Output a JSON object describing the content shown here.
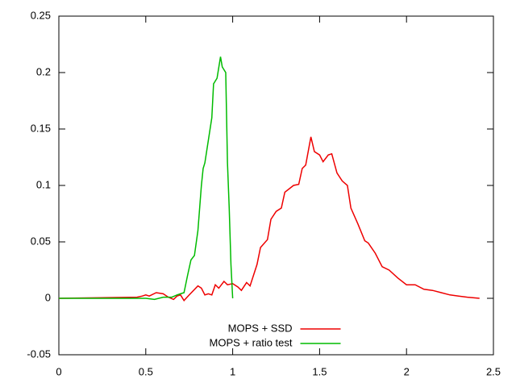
{
  "chart_data": {
    "type": "line",
    "xlim": [
      0,
      2.5
    ],
    "xticks": [
      0,
      0.5,
      1,
      1.5,
      2,
      2.5
    ],
    "ylim": [
      -0.05,
      0.25
    ],
    "yticks": [
      -0.05,
      0,
      0.05,
      0.1,
      0.15,
      0.2,
      0.25
    ],
    "legend": "bottom center",
    "series": [
      {
        "name": "MOPS + SSD",
        "color": "#ee0000",
        "x": [
          0,
          0.45,
          0.48,
          0.5,
          0.52,
          0.56,
          0.6,
          0.63,
          0.66,
          0.68,
          0.7,
          0.72,
          0.75,
          0.8,
          0.82,
          0.84,
          0.86,
          0.88,
          0.9,
          0.92,
          0.95,
          0.97,
          1.0,
          1.03,
          1.05,
          1.08,
          1.1,
          1.14,
          1.16,
          1.2,
          1.22,
          1.25,
          1.28,
          1.3,
          1.35,
          1.38,
          1.4,
          1.42,
          1.45,
          1.47,
          1.5,
          1.52,
          1.55,
          1.57,
          1.6,
          1.63,
          1.66,
          1.68,
          1.72,
          1.76,
          1.78,
          1.82,
          1.86,
          1.9,
          1.95,
          2.0,
          2.05,
          2.1,
          2.15,
          2.2,
          2.25,
          2.3,
          2.35,
          2.42
        ],
        "values": [
          0,
          0.001,
          0.002,
          0.003,
          0.002,
          0.005,
          0.004,
          0.001,
          -0.001,
          0.002,
          0.003,
          -0.002,
          0.003,
          0.011,
          0.009,
          0.003,
          0.004,
          0.003,
          0.012,
          0.009,
          0.015,
          0.012,
          0.013,
          0.01,
          0.007,
          0.014,
          0.011,
          0.03,
          0.045,
          0.052,
          0.07,
          0.077,
          0.08,
          0.094,
          0.1,
          0.101,
          0.115,
          0.118,
          0.143,
          0.13,
          0.127,
          0.121,
          0.127,
          0.128,
          0.111,
          0.104,
          0.1,
          0.08,
          0.066,
          0.051,
          0.049,
          0.04,
          0.028,
          0.025,
          0.018,
          0.012,
          0.012,
          0.008,
          0.007,
          0.005,
          0.003,
          0.002,
          0.001,
          0
        ]
      },
      {
        "name": "MOPS + ratio test",
        "color": "#00bb00",
        "x": [
          0,
          0.45,
          0.5,
          0.55,
          0.6,
          0.65,
          0.68,
          0.7,
          0.72,
          0.74,
          0.76,
          0.78,
          0.8,
          0.82,
          0.83,
          0.84,
          0.86,
          0.88,
          0.89,
          0.91,
          0.93,
          0.94,
          0.96,
          0.97,
          0.98,
          0.99,
          1.0
        ],
        "values": [
          0,
          0,
          0,
          -0.001,
          0.001,
          0.001,
          0.003,
          0.004,
          0.005,
          0.02,
          0.034,
          0.038,
          0.06,
          0.1,
          0.115,
          0.12,
          0.14,
          0.16,
          0.19,
          0.195,
          0.214,
          0.205,
          0.2,
          0.12,
          0.08,
          0.03,
          0
        ]
      }
    ]
  }
}
